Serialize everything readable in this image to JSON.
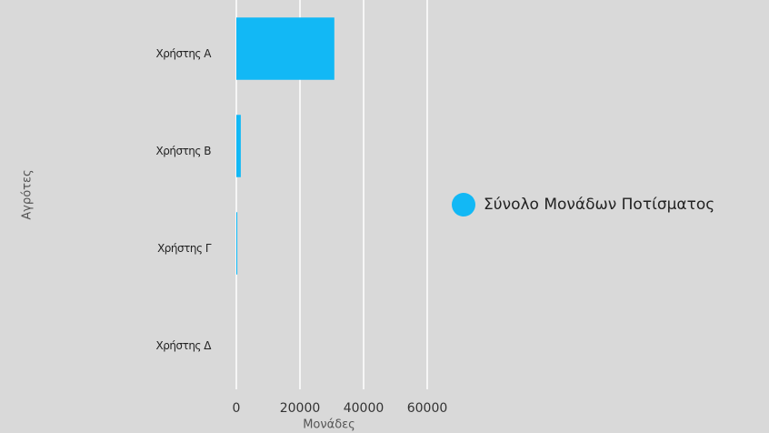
{
  "chart_data": {
    "type": "hbar",
    "x_label": "Μονάδες",
    "y_label": "Αγρότες",
    "categories": [
      "Χρήστης Α",
      "Χρήστης Β",
      "Χρήστης Γ",
      "Χρήστης Δ"
    ],
    "series": [
      {
        "name": "Σύνολο Μονάδων Ποτίσματος",
        "color": "#12b8f5",
        "values": [
          30800,
          1400,
          300,
          0
        ]
      }
    ],
    "xlim": [
      0,
      60000
    ],
    "xticks": [
      0,
      20000,
      40000,
      60000
    ],
    "grid": true,
    "legend": "right"
  }
}
